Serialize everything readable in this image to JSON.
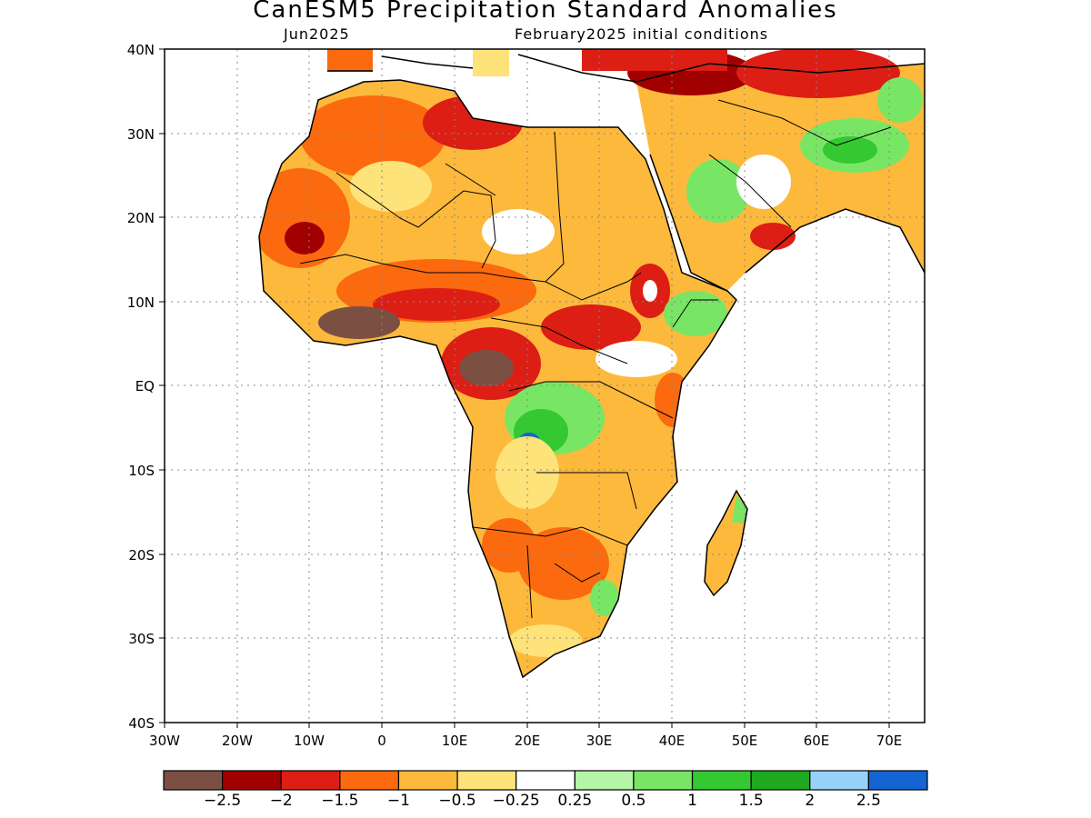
{
  "header": {
    "title": "CanESM5 Precipitation Standard Anomalies",
    "target_month": "Jun2025",
    "initial_conditions": "February2025 initial conditions"
  },
  "axes": {
    "x_ticks": [
      "30W",
      "20W",
      "10W",
      "0",
      "10E",
      "20E",
      "30E",
      "40E",
      "50E",
      "60E",
      "70E"
    ],
    "y_ticks": [
      "40N",
      "30N",
      "20N",
      "10N",
      "EQ",
      "10S",
      "20S",
      "30S",
      "40S"
    ],
    "lon_range": [
      -30,
      75
    ],
    "lat_range": [
      -40,
      40
    ]
  },
  "colorbar": {
    "colors": [
      "#7b5043",
      "#a10000",
      "#dc1e14",
      "#fb6a0e",
      "#fdb93c",
      "#fee27a",
      "#ffffff",
      "#b4f5a8",
      "#78e664",
      "#34c832",
      "#1ea91e",
      "#96d2fa",
      "#1464d2"
    ],
    "labels": [
      "-2.5",
      "-2",
      "-1.5",
      "-1",
      "-0.5",
      "-0.25",
      "0.25",
      "0.5",
      "1",
      "1.5",
      "2",
      "2.5"
    ]
  }
}
